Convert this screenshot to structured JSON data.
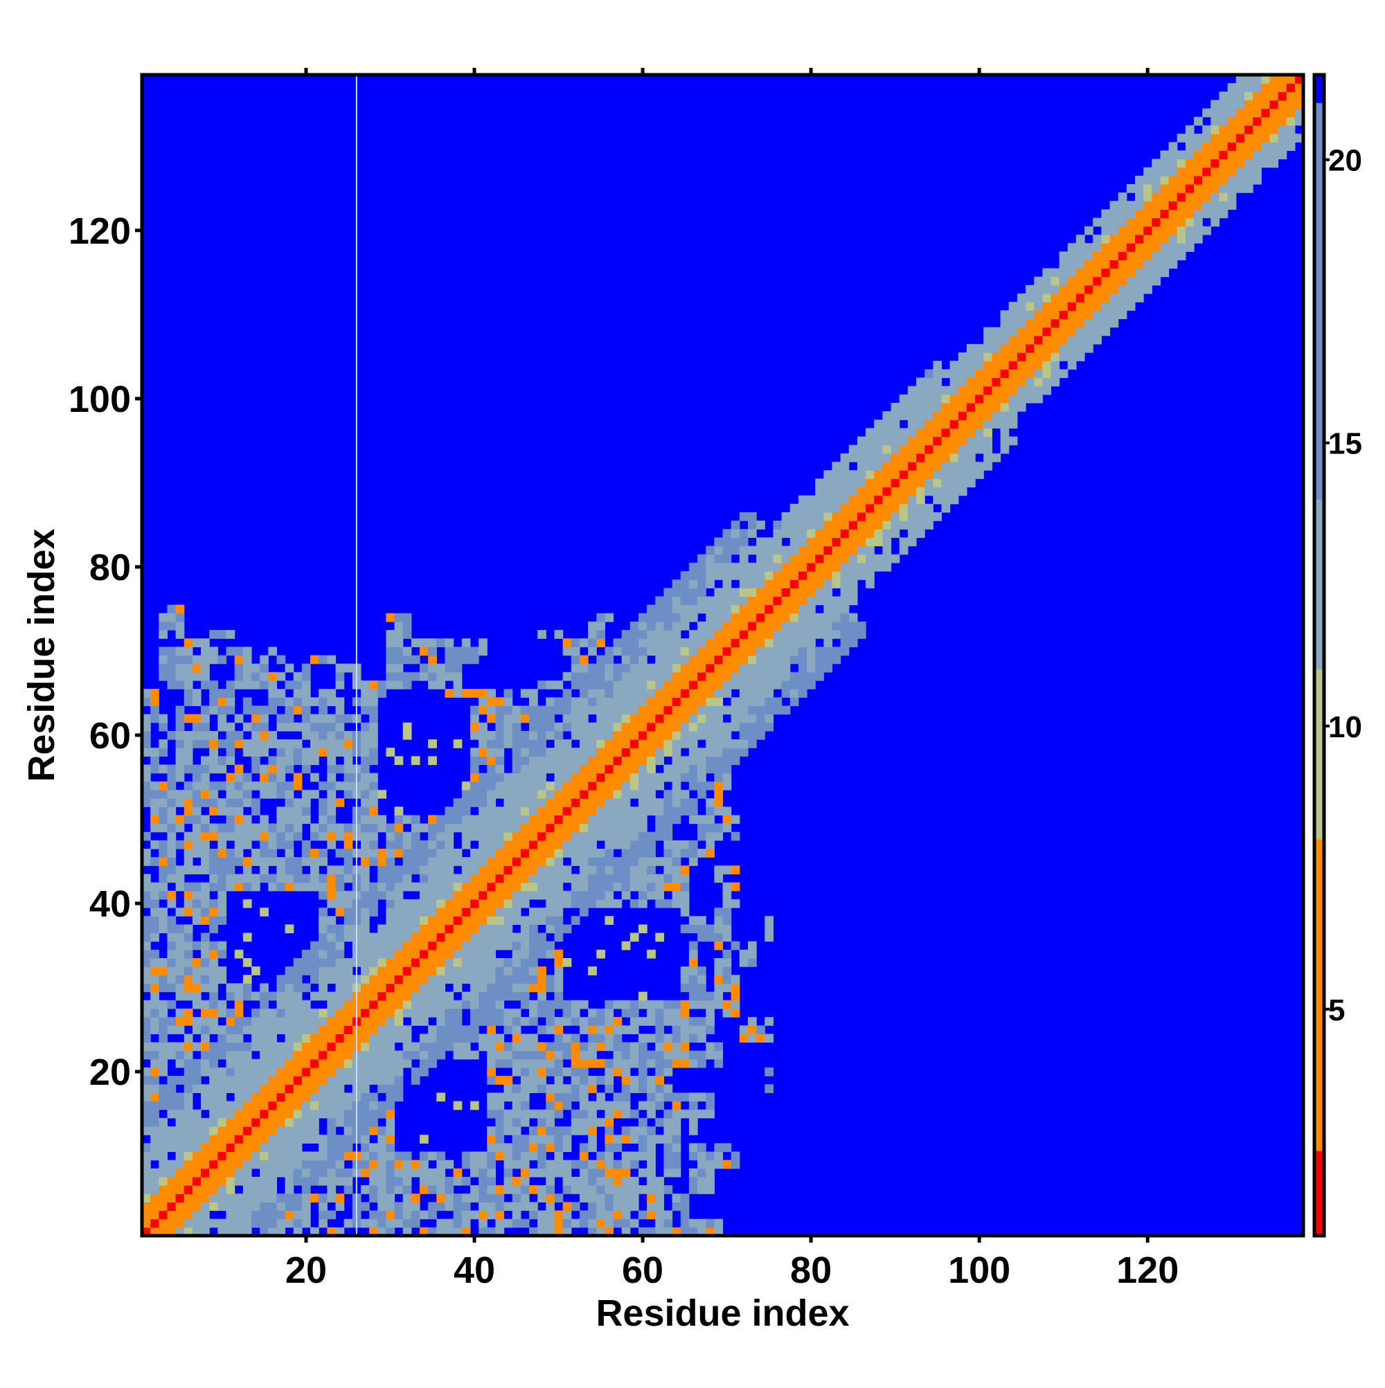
{
  "colors": {
    "background": "#0000ff",
    "ramp": [
      "#ff0000",
      "#ff8c00",
      "#b9c68a",
      "#8aa8bf",
      "#6d8fc6"
    ],
    "stripe": "#cfd8ff"
  },
  "chart_data": {
    "type": "heatmap",
    "title": "",
    "xlabel": "Residue index",
    "ylabel": "Residue index",
    "xlim": [
      1,
      138
    ],
    "ylim": [
      1,
      138
    ],
    "xticks": [
      20,
      40,
      60,
      80,
      100,
      120
    ],
    "yticks": [
      20,
      40,
      60,
      80,
      100,
      120
    ],
    "colorbar": {
      "range": [
        1,
        21.5
      ],
      "ticks": [
        5,
        10,
        15,
        20
      ]
    },
    "n_residues": 138,
    "cell_rule": "distance-like value per residue pair (i,j); ≈1 on diagonal (red), ~4–7 within ±2 of diagonal (orange), ~9–13 in a band of width ~8–15, scattered 9–16 values in the block i,j < ~72 with j < ~60–75, and >21 (saturated blue) elsewhere",
    "contact_regions": [
      {
        "name": "diagonal band",
        "from": [
          1,
          1
        ],
        "to": [
          138,
          138
        ],
        "half_width": 12
      },
      {
        "name": "N-terminal block",
        "x_range": [
          1,
          74
        ],
        "y_range": [
          1,
          76
        ]
      }
    ],
    "missing_column": 26
  }
}
